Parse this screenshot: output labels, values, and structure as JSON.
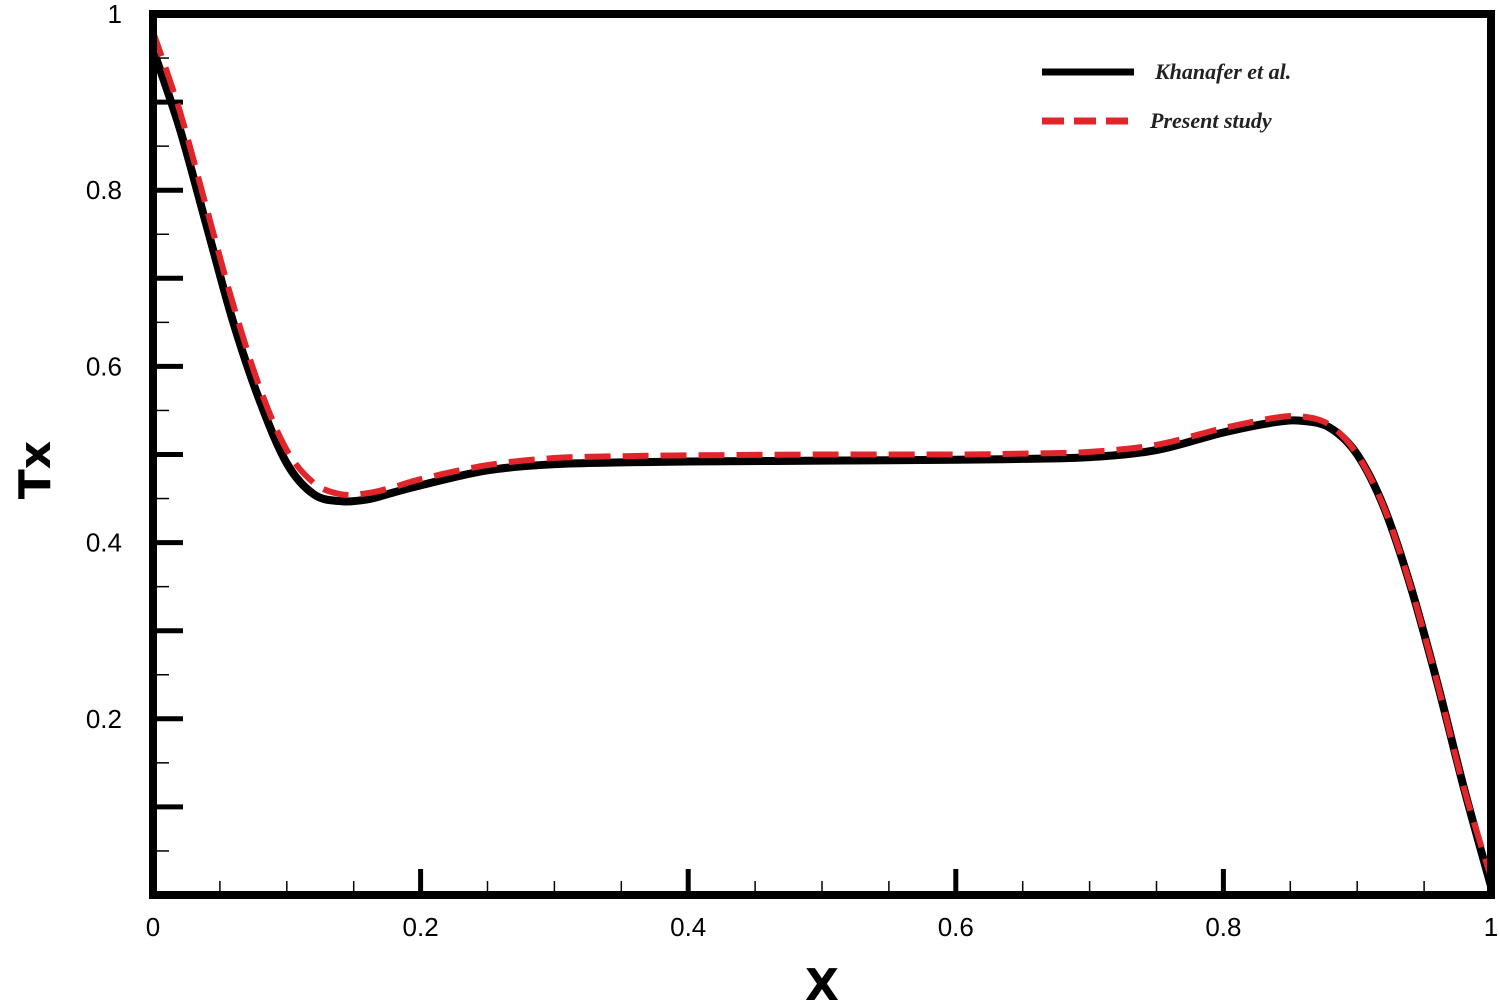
{
  "chart_data": {
    "type": "line",
    "title": "",
    "xlabel": "X",
    "ylabel": "Tx",
    "xlim": [
      0,
      1
    ],
    "ylim": [
      0,
      1
    ],
    "x_ticks": [
      0,
      0.2,
      0.4,
      0.6,
      0.8,
      1
    ],
    "x_tick_labels": [
      "0",
      "0.2",
      "0.4",
      "0.6",
      "0.8",
      "1"
    ],
    "y_ticks": [
      0.2,
      0.4,
      0.6,
      0.8,
      1
    ],
    "y_tick_labels": [
      "0.2",
      "0.4",
      "0.6",
      "0.8",
      "1"
    ],
    "grid": false,
    "legend_position": "top-right",
    "series": [
      {
        "name": "Khanafer et al.",
        "color": "#000000",
        "style": "solid",
        "x": [
          0,
          0.02,
          0.04,
          0.06,
          0.08,
          0.1,
          0.12,
          0.14,
          0.16,
          0.18,
          0.2,
          0.25,
          0.3,
          0.35,
          0.4,
          0.5,
          0.6,
          0.65,
          0.7,
          0.75,
          0.8,
          0.84,
          0.86,
          0.88,
          0.9,
          0.92,
          0.94,
          0.96,
          0.98,
          1.0
        ],
        "y": [
          0.96,
          0.87,
          0.76,
          0.65,
          0.56,
          0.49,
          0.455,
          0.447,
          0.449,
          0.457,
          0.465,
          0.482,
          0.489,
          0.491,
          0.492,
          0.493,
          0.494,
          0.495,
          0.497,
          0.505,
          0.525,
          0.537,
          0.538,
          0.53,
          0.5,
          0.44,
          0.35,
          0.24,
          0.12,
          0.01
        ]
      },
      {
        "name": "Present study",
        "color": "#e0252b",
        "style": "dashed",
        "x": [
          0,
          0.02,
          0.04,
          0.06,
          0.08,
          0.1,
          0.12,
          0.14,
          0.16,
          0.18,
          0.2,
          0.25,
          0.3,
          0.35,
          0.4,
          0.5,
          0.6,
          0.65,
          0.7,
          0.75,
          0.8,
          0.84,
          0.86,
          0.88,
          0.9,
          0.92,
          0.94,
          0.96,
          0.98,
          1.0
        ],
        "y": [
          0.98,
          0.89,
          0.78,
          0.67,
          0.575,
          0.505,
          0.468,
          0.455,
          0.456,
          0.463,
          0.472,
          0.488,
          0.496,
          0.498,
          0.499,
          0.5,
          0.5,
          0.501,
          0.503,
          0.511,
          0.53,
          0.542,
          0.543,
          0.533,
          0.5,
          0.44,
          0.35,
          0.24,
          0.12,
          0.02
        ]
      }
    ]
  }
}
